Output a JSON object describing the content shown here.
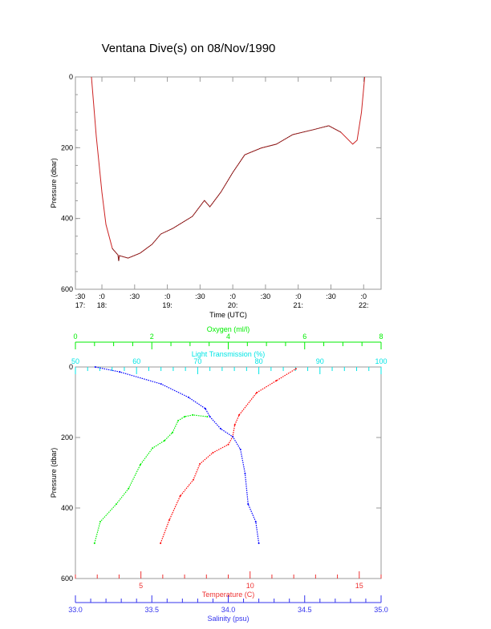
{
  "chart_data": [
    {
      "type": "line",
      "title": "Ventana Dive(s) on 08/Nov/1990",
      "xlabel": "Time (UTC)",
      "ylabel": "Pressure (dbar)",
      "x_units": "minutes after 18:00 UTC",
      "xlim": [
        -24.3,
        256
      ],
      "ylim": [
        600,
        0
      ],
      "yticks": [
        0,
        200,
        400,
        600
      ],
      "xtick_labels": [
        {
          "minute": -30,
          "top": ":30",
          "bottom": "17:"
        },
        {
          "minute": 0,
          "top": ":0",
          "bottom": "18:"
        },
        {
          "minute": 30,
          "top": ":30",
          "bottom": ""
        },
        {
          "minute": 60,
          "top": ":0",
          "bottom": "19:"
        },
        {
          "minute": 90,
          "top": ":30",
          "bottom": ""
        },
        {
          "minute": 120,
          "top": ":0",
          "bottom": "20:"
        },
        {
          "minute": 150,
          "top": ":30",
          "bottom": ""
        },
        {
          "minute": 180,
          "top": ":0",
          "bottom": "21:"
        },
        {
          "minute": 210,
          "top": ":30",
          "bottom": ""
        },
        {
          "minute": 240,
          "top": ":0",
          "bottom": "22:"
        }
      ],
      "series": [
        {
          "name": "Pressure",
          "color": "#cc2222",
          "x": [
            -9.6,
            -5.2,
            0,
            3.7,
            9.6,
            14.7,
            15.4,
            16,
            24,
            35,
            46,
            54,
            65,
            83,
            94,
            99,
            109,
            120,
            131,
            146,
            160,
            175,
            194,
            208,
            219,
            230,
            234,
            238,
            241
          ],
          "y": [
            0,
            167,
            326,
            417,
            485,
            503,
            520,
            505,
            512,
            498,
            473,
            444,
            428,
            394,
            349,
            367,
            326,
            270,
            220,
            201,
            190,
            163,
            149,
            138,
            156,
            190,
            179,
            100,
            0
          ]
        }
      ]
    },
    {
      "type": "scatter",
      "ylabel": "Pressure (dbar)",
      "ylim": [
        600,
        0
      ],
      "yticks": [
        0,
        200,
        400,
        600
      ],
      "axes": [
        {
          "name": "Oxygen (ml/l)",
          "color": "#00ee00",
          "position": "top",
          "range": [
            0,
            8
          ],
          "ticks": [
            0,
            2,
            4,
            6,
            8
          ],
          "minor": 0.5
        },
        {
          "name": "Light Transmission (%)",
          "color": "#00e5e5",
          "position": "top",
          "range": [
            50,
            100
          ],
          "ticks": [
            50,
            60,
            70,
            80,
            90,
            100
          ],
          "minor": 2
        },
        {
          "name": "Temperature (C)",
          "color": "#ee3333",
          "position": "bottom",
          "range": [
            2,
            16
          ],
          "ticks": [
            5,
            10,
            15
          ],
          "minor": 1
        },
        {
          "name": "Salinity (psu)",
          "color": "#3333ee",
          "position": "bottom",
          "range": [
            33.0,
            35.0
          ],
          "ticks": [
            "33.0",
            "33.5",
            "34.0",
            "34.5",
            "35.0"
          ],
          "minor": 0.1
        }
      ],
      "series": [
        {
          "name": "Temperature",
          "axis": 2,
          "color": "#ff0000",
          "x": [
            5.9,
            6.3,
            6.8,
            7.4,
            7.7,
            8.3,
            9.0,
            9.2,
            9.3,
            9.5,
            10.3,
            11.2,
            12.1
          ],
          "y": [
            500,
            434,
            366,
            320,
            275,
            243,
            220,
            198,
            164,
            136,
            73,
            39,
            5
          ]
        },
        {
          "name": "Salinity",
          "axis": 3,
          "color": "#0000ff",
          "x": [
            34.2,
            34.18,
            34.13,
            34.11,
            34.08,
            34.03,
            33.95,
            33.88,
            33.85,
            33.74,
            33.56,
            33.29,
            33.13
          ],
          "y": [
            500,
            439,
            389,
            302,
            234,
            198,
            175,
            141,
            118,
            86,
            48,
            14,
            0
          ]
        },
        {
          "name": "Oxygen",
          "axis": 0,
          "color": "#00ee00",
          "x": [
            0.5,
            0.65,
            1.07,
            1.39,
            1.7,
            2.02,
            2.33,
            2.54,
            2.69,
            2.86,
            3.07,
            3.45
          ],
          "y": [
            500,
            439,
            389,
            345,
            277,
            230,
            209,
            186,
            152,
            141,
            136,
            141
          ]
        }
      ]
    }
  ]
}
